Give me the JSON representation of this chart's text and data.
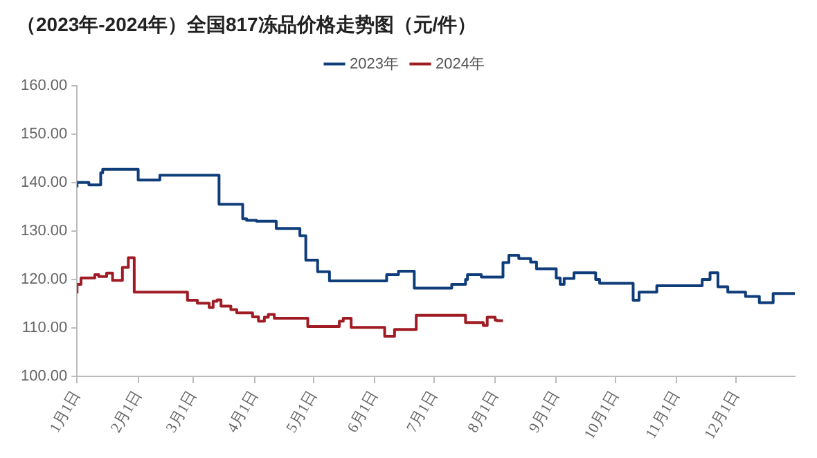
{
  "chart_data": {
    "type": "step",
    "title": "（2023年-2024年）全国817冻品价格走势图（元/件）",
    "xlim": [
      "--01-01",
      "--12-31"
    ],
    "xticks": [
      {
        "value": "--01-01",
        "label": "1月1日"
      },
      {
        "value": "--02-01",
        "label": "2月1日"
      },
      {
        "value": "--03-01",
        "label": "3月1日"
      },
      {
        "value": "--04-01",
        "label": "4月1日"
      },
      {
        "value": "--05-01",
        "label": "5月1日"
      },
      {
        "value": "--06-01",
        "label": "6月1日"
      },
      {
        "value": "--07-01",
        "label": "7月1日"
      },
      {
        "value": "--08-01",
        "label": "8月1日"
      },
      {
        "value": "--09-01",
        "label": "9月1日"
      },
      {
        "value": "--10-01",
        "label": "10月1日"
      },
      {
        "value": "--11-01",
        "label": "11月1日"
      },
      {
        "value": "--12-01",
        "label": "12月1日"
      }
    ],
    "ylim": [
      100,
      160
    ],
    "yticks": [
      {
        "value": 100,
        "label": "100.00"
      },
      {
        "value": 110,
        "label": "110.00"
      },
      {
        "value": 120,
        "label": "120.00"
      },
      {
        "value": 130,
        "label": "130.00"
      },
      {
        "value": 140,
        "label": "140.00"
      },
      {
        "value": 150,
        "label": "150.00"
      },
      {
        "value": 160,
        "label": "160.00"
      }
    ],
    "grid": false,
    "legend": "top",
    "marker": "none",
    "series": [
      {
        "name": "2023年",
        "color": "#0f3d7a",
        "x": [
          "--01-01",
          "--01-07",
          "--01-13",
          "--01-14",
          "--02-01",
          "--02-12",
          "--03-14",
          "--03-26",
          "--03-28",
          "--04-02",
          "--04-12",
          "--04-24",
          "--04-27",
          "--05-03",
          "--05-09",
          "--06-07",
          "--06-13",
          "--06-21",
          "--07-10",
          "--07-17",
          "--07-18",
          "--07-25",
          "--08-05",
          "--08-08",
          "--08-13",
          "--08-19",
          "--08-22",
          "--09-01",
          "--09-03",
          "--09-05",
          "--09-10",
          "--09-21",
          "--09-23",
          "--10-10",
          "--10-13",
          "--10-22",
          "--11-14",
          "--11-18",
          "--11-22",
          "--11-27",
          "--12-06",
          "--12-13",
          "--12-20",
          "--12-23",
          "--12-31"
        ],
        "values": [
          139,
          140,
          139.5,
          142,
          142.7,
          140.5,
          141.5,
          135.5,
          132.5,
          132.2,
          132,
          130.5,
          129,
          124,
          121.6,
          119.7,
          121,
          121.7,
          118.2,
          119,
          120,
          121,
          120.5,
          123.5,
          125,
          124.3,
          123.6,
          122.2,
          120.3,
          119,
          120.2,
          121.4,
          120,
          119.2,
          115.7,
          117.4,
          118.7,
          120,
          121.4,
          118.5,
          117.4,
          116.5,
          115.2,
          117.1,
          117.1
        ]
      },
      {
        "name": "2024年",
        "color": "#a01c24",
        "x": [
          "--01-01",
          "--01-03",
          "--01-10",
          "--01-12",
          "--01-16",
          "--01-19",
          "--01-24",
          "--01-27",
          "--01-30",
          "--02-26",
          "--03-03",
          "--03-09",
          "--03-11",
          "--03-13",
          "--03-15",
          "--03-20",
          "--03-23",
          "--03-31",
          "--04-03",
          "--04-06",
          "--04-08",
          "--04-11",
          "--04-28",
          "--05-14",
          "--05-16",
          "--05-20",
          "--06-06",
          "--06-11",
          "--06-22",
          "--07-17",
          "--07-26",
          "--07-28",
          "--08-01",
          "--08-02",
          "--08-05"
        ],
        "values": [
          117.1,
          119,
          120.3,
          121,
          120.6,
          121.3,
          119.8,
          122.5,
          124.5,
          117.4,
          115.7,
          115.1,
          114.2,
          115.5,
          115.8,
          114.5,
          113.8,
          113.1,
          112.3,
          111.4,
          112.2,
          112.8,
          112,
          110.3,
          111.4,
          112,
          110.1,
          108.3,
          109.7,
          112.6,
          111.1,
          110.5,
          112.2,
          111.6,
          111.5
        ]
      }
    ]
  }
}
